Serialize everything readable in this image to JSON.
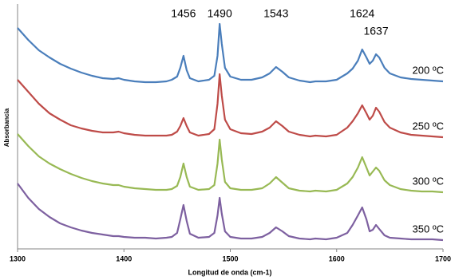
{
  "chart_data": {
    "type": "line",
    "xlabel": "Longitud de onda (cm-1)",
    "ylabel": "Absorbancia",
    "x": [
      1300,
      1310,
      1320,
      1330,
      1340,
      1350,
      1360,
      1370,
      1380,
      1390,
      1395,
      1400,
      1410,
      1420,
      1430,
      1440,
      1445,
      1450,
      1453,
      1456,
      1459,
      1462,
      1470,
      1480,
      1485,
      1488,
      1490,
      1492,
      1495,
      1500,
      1510,
      1520,
      1530,
      1537,
      1543,
      1549,
      1555,
      1565,
      1575,
      1580,
      1590,
      1600,
      1610,
      1615,
      1620,
      1624,
      1628,
      1631,
      1634,
      1637,
      1640,
      1645,
      1650,
      1660,
      1670,
      1680,
      1690,
      1700
    ],
    "series": [
      {
        "name": "200 ºC",
        "color": "#4a7ebb",
        "values": [
          277,
          262,
          249,
          240,
          232,
          226,
          221,
          217,
          214,
          213,
          214,
          212,
          210,
          209,
          209,
          210,
          212,
          216,
          227,
          242,
          224,
          214,
          210,
          212,
          217,
          242,
          282,
          257,
          227,
          216,
          212,
          212,
          215,
          220,
          228,
          222,
          215,
          211,
          209,
          210,
          210,
          212,
          220,
          226,
          236,
          250,
          240,
          232,
          236,
          244,
          240,
          227,
          220,
          215,
          213,
          212,
          211,
          210
        ]
      },
      {
        "name": "250 ºC",
        "color": "#be4b48",
        "values": [
          212,
          197,
          182,
          170,
          162,
          155,
          151,
          148,
          146,
          146,
          147,
          145,
          143,
          142,
          142,
          142,
          143,
          147,
          154,
          164,
          154,
          146,
          142,
          144,
          150,
          182,
          219,
          192,
          162,
          150,
          145,
          144,
          147,
          152,
          160,
          154,
          147,
          143,
          141,
          142,
          141,
          143,
          152,
          160,
          170,
          180,
          170,
          162,
          167,
          177,
          172,
          159,
          152,
          146,
          143,
          142,
          141,
          140
        ]
      },
      {
        "name": "300 ºC",
        "color": "#98b954",
        "values": [
          144,
          129,
          116,
          107,
          100,
          94,
          89,
          85,
          82,
          80,
          80,
          78,
          76,
          75,
          74,
          74,
          75,
          79,
          90,
          107,
          90,
          78,
          74,
          75,
          80,
          107,
          137,
          112,
          84,
          76,
          74,
          74,
          76,
          82,
          90,
          83,
          76,
          73,
          72,
          73,
          72,
          74,
          82,
          90,
          102,
          115,
          102,
          92,
          97,
          102,
          98,
          86,
          80,
          75,
          73,
          72,
          72,
          71
        ]
      },
      {
        "name": "350 ºC",
        "color": "#7d60a0",
        "values": [
          82,
          64,
          50,
          40,
          32,
          27,
          23,
          20,
          18,
          16,
          16,
          15,
          14,
          14,
          13,
          14,
          15,
          20,
          37,
          55,
          35,
          19,
          14,
          15,
          20,
          42,
          64,
          44,
          22,
          15,
          13,
          13,
          15,
          20,
          27,
          22,
          16,
          13,
          12,
          13,
          12,
          14,
          20,
          30,
          42,
          52,
          37,
          22,
          24,
          30,
          25,
          17,
          14,
          13,
          12,
          12,
          12,
          11
        ]
      }
    ],
    "peaks": [
      1456,
      1490,
      1543,
      1624,
      1637
    ],
    "xlim": [
      1300,
      1700
    ],
    "xticks": [
      1300,
      1400,
      1500,
      1600,
      1700
    ],
    "ylim": [
      0,
      300
    ],
    "grid": false
  }
}
